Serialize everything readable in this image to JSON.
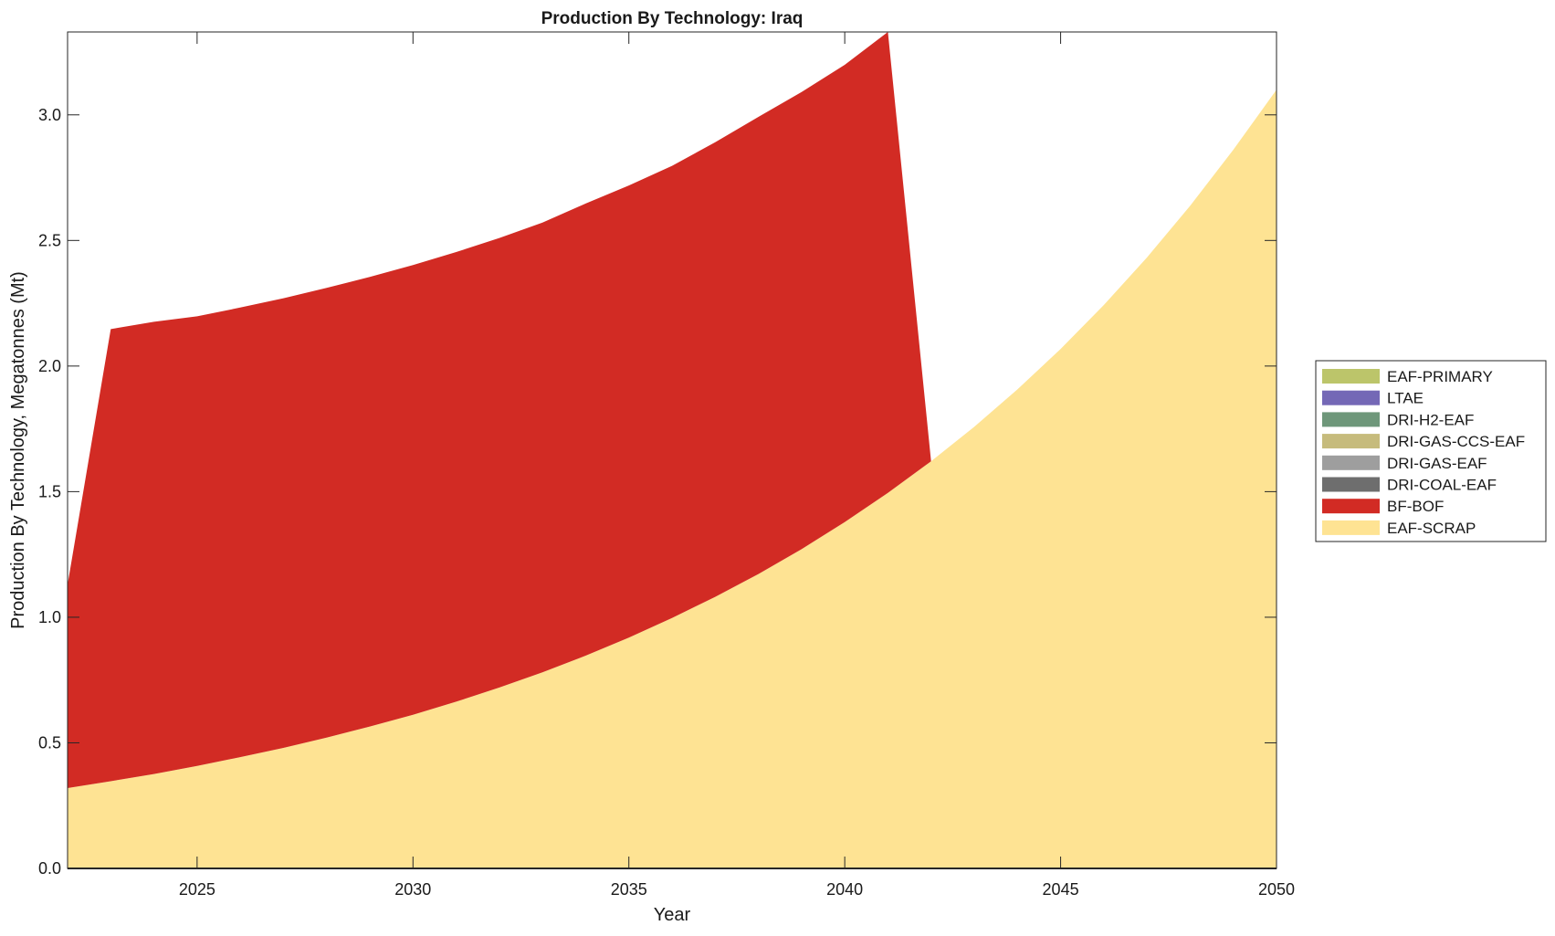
{
  "chart_data": {
    "type": "area",
    "stacked": true,
    "title": "Production By Technology: Iraq",
    "xlabel": "Year",
    "ylabel": "Production By Technology, Megatonnes (Mt)",
    "xlim": [
      2022,
      2050
    ],
    "ylim": [
      0,
      3.33
    ],
    "xticks": [
      2025,
      2030,
      2035,
      2040,
      2045,
      2050
    ],
    "yticks": [
      0.0,
      0.5,
      1.0,
      1.5,
      2.0,
      2.5,
      3.0
    ],
    "ytick_labels": [
      "0.0",
      "0.5",
      "1.0",
      "1.5",
      "2.0",
      "2.5",
      "3.0"
    ],
    "legend_position": "right",
    "x": [
      2022,
      2023,
      2024,
      2025,
      2026,
      2027,
      2028,
      2029,
      2030,
      2031,
      2032,
      2033,
      2034,
      2035,
      2036,
      2037,
      2038,
      2039,
      2040,
      2041,
      2042,
      2043,
      2044,
      2045,
      2046,
      2047,
      2048,
      2049,
      2050
    ],
    "series": [
      {
        "name": "EAF-SCRAP",
        "color": "#fee393",
        "values": [
          0.32,
          0.347,
          0.376,
          0.408,
          0.443,
          0.48,
          0.521,
          0.565,
          0.612,
          0.664,
          0.72,
          0.781,
          0.847,
          0.919,
          0.997,
          1.081,
          1.172,
          1.271,
          1.379,
          1.495,
          1.621,
          1.758,
          1.907,
          2.068,
          2.243,
          2.432,
          2.638,
          2.861,
          3.1
        ]
      },
      {
        "name": "BF-BOF",
        "color": "#d22b24",
        "values": [
          0.81,
          1.8,
          1.8,
          1.79,
          1.79,
          1.79,
          1.79,
          1.79,
          1.79,
          1.79,
          1.79,
          1.79,
          1.8,
          1.8,
          1.8,
          1.81,
          1.82,
          1.82,
          1.82,
          1.835,
          0,
          0,
          0,
          0,
          0,
          0,
          0,
          0,
          0
        ]
      },
      {
        "name": "DRI-COAL-EAF",
        "color": "#6e6e6e",
        "values": [
          0,
          0,
          0,
          0,
          0,
          0,
          0,
          0,
          0,
          0,
          0,
          0,
          0,
          0,
          0,
          0,
          0,
          0,
          0,
          0,
          0,
          0,
          0,
          0,
          0,
          0,
          0,
          0,
          0
        ]
      },
      {
        "name": "DRI-GAS-EAF",
        "color": "#9e9e9e",
        "values": [
          0,
          0,
          0,
          0,
          0,
          0,
          0,
          0,
          0,
          0,
          0,
          0,
          0,
          0,
          0,
          0,
          0,
          0,
          0,
          0,
          0,
          0,
          0,
          0,
          0,
          0,
          0,
          0,
          0
        ]
      },
      {
        "name": "DRI-GAS-CCS-EAF",
        "color": "#c6bb7c",
        "values": [
          0,
          0,
          0,
          0,
          0,
          0,
          0,
          0,
          0,
          0,
          0,
          0,
          0,
          0,
          0,
          0,
          0,
          0,
          0,
          0,
          0,
          0,
          0,
          0,
          0,
          0,
          0,
          0,
          0
        ]
      },
      {
        "name": "DRI-H2-EAF",
        "color": "#6e977a",
        "values": [
          0,
          0,
          0,
          0,
          0,
          0,
          0,
          0,
          0,
          0,
          0,
          0,
          0,
          0,
          0,
          0,
          0,
          0,
          0,
          0,
          0,
          0,
          0,
          0,
          0,
          0,
          0,
          0,
          0
        ]
      },
      {
        "name": "LTAE",
        "color": "#7468b6",
        "values": [
          0,
          0,
          0,
          0,
          0,
          0,
          0,
          0,
          0,
          0,
          0,
          0,
          0,
          0,
          0,
          0,
          0,
          0,
          0,
          0,
          0,
          0,
          0,
          0,
          0,
          0,
          0,
          0,
          0
        ]
      },
      {
        "name": "EAF-PRIMARY",
        "color": "#bcc56a",
        "values": [
          0,
          0,
          0,
          0,
          0,
          0,
          0,
          0,
          0,
          0,
          0,
          0,
          0,
          0,
          0,
          0,
          0,
          0,
          0,
          0,
          0,
          0,
          0,
          0,
          0,
          0,
          0,
          0,
          0
        ]
      }
    ],
    "legend_order": [
      "EAF-PRIMARY",
      "LTAE",
      "DRI-H2-EAF",
      "DRI-GAS-CCS-EAF",
      "DRI-GAS-EAF",
      "DRI-COAL-EAF",
      "BF-BOF",
      "EAF-SCRAP"
    ]
  }
}
